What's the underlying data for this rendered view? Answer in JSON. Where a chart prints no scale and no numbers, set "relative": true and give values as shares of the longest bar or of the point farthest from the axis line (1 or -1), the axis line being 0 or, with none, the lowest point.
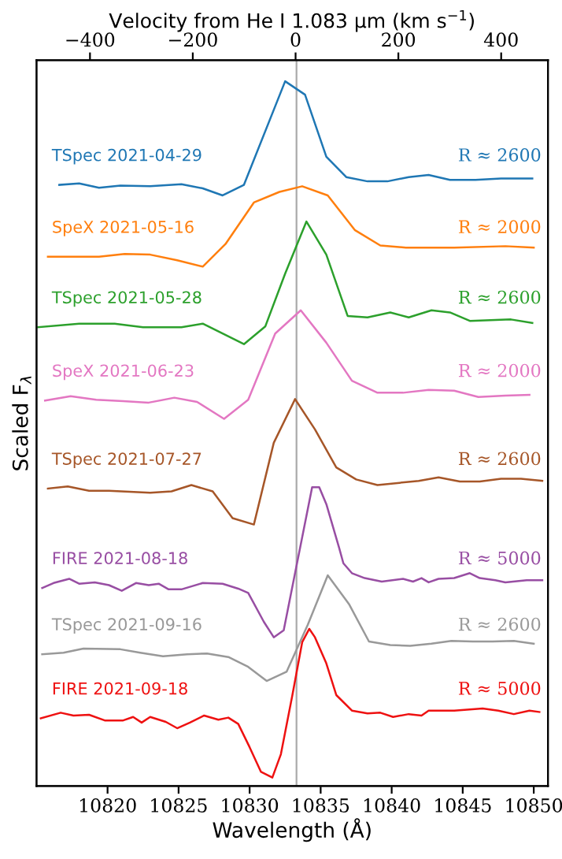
{
  "chart_data": {
    "type": "line",
    "relative": true,
    "xlabel": "Wavelength (Å)",
    "ylabel": "Scaled F$_{λ}$",
    "x2label": "Velocity from He I 1.083 μm (km s$^{−1}$)",
    "xlim": [
      10815,
      10851
    ],
    "xticks": [
      10820,
      10825,
      10830,
      10835,
      10840,
      10845,
      10850
    ],
    "x2lim": [
      -504,
      491
    ],
    "x2ticks": [
      {
        "value": -400,
        "label": "−400"
      },
      {
        "value": -200,
        "label": "−200"
      },
      0,
      200,
      400
    ],
    "grid": false,
    "legend": false,
    "marker": "none",
    "line_style": "solid",
    "ref_lines": [
      {
        "axis": "x",
        "value": 10833.3,
        "color": "#aaaaaa"
      }
    ],
    "series": [
      {
        "name": "TSpec 2021-04-29",
        "color": "#1f77b4",
        "x": [
          10816.6,
          10818.0,
          10819.4,
          10820.9,
          10823.0,
          10825.2,
          10826.7,
          10828.1,
          10829.6,
          10832.5,
          10833.9,
          10835.4,
          10836.8,
          10838.3,
          10839.7,
          10841.2,
          10842.6,
          10844.1,
          10845.9,
          10847.7,
          10849.9
        ],
        "values": [
          0.853,
          0.855,
          0.849,
          0.852,
          0.851,
          0.854,
          0.848,
          0.838,
          0.853,
          1,
          0.981,
          0.893,
          0.864,
          0.858,
          0.858,
          0.864,
          0.867,
          0.86,
          0.86,
          0.862,
          0.862
        ]
      },
      {
        "name": "SpeX 2021-05-16",
        "color": "#ff7f0e",
        "x": [
          10815.8,
          10819.4,
          10821.2,
          10823.0,
          10824.9,
          10826.7,
          10828.3,
          10830.3,
          10832.1,
          10833.7,
          10835.5,
          10837.4,
          10839.2,
          10841.0,
          10844.4,
          10848.0,
          10850.0
        ],
        "values": [
          0.751,
          0.751,
          0.755,
          0.754,
          0.746,
          0.737,
          0.769,
          0.828,
          0.843,
          0.851,
          0.838,
          0.789,
          0.767,
          0.764,
          0.764,
          0.766,
          0.764
        ]
      },
      {
        "name": "TSpec 2021-05-28",
        "color": "#2ca02c",
        "x": [
          10815.1,
          10818.0,
          10820.5,
          10822.5,
          10825.2,
          10826.7,
          10829.6,
          10831.1,
          10832.5,
          10834.0,
          10835.4,
          10836.9,
          10838.3,
          10839.9,
          10841.2,
          10842.8,
          10844.1,
          10845.5,
          10848.4,
          10849.9
        ],
        "values": [
          0.651,
          0.656,
          0.656,
          0.651,
          0.651,
          0.656,
          0.627,
          0.652,
          0.727,
          0.801,
          0.754,
          0.667,
          0.665,
          0.672,
          0.665,
          0.675,
          0.672,
          0.66,
          0.662,
          0.657
        ]
      },
      {
        "name": "SpeX 2021-06-23",
        "color": "#e377c2",
        "x": [
          10815.6,
          10817.4,
          10819.2,
          10821.1,
          10822.9,
          10824.7,
          10826.3,
          10828.2,
          10829.9,
          10831.8,
          10833.6,
          10835.4,
          10837.2,
          10839.0,
          10840.8,
          10842.6,
          10844.4,
          10846.1,
          10848.0,
          10849.7
        ],
        "values": [
          0.547,
          0.553,
          0.548,
          0.546,
          0.544,
          0.551,
          0.545,
          0.521,
          0.548,
          0.642,
          0.675,
          0.629,
          0.575,
          0.558,
          0.558,
          0.562,
          0.561,
          0.552,
          0.554,
          0.555
        ]
      },
      {
        "name": "TSpec 2021-07-27",
        "color": "#a65628",
        "x": [
          10815.8,
          10817.2,
          10818.7,
          10820.1,
          10823.0,
          10824.5,
          10825.9,
          10827.4,
          10828.8,
          10830.3,
          10831.7,
          10833.2,
          10834.6,
          10836.1,
          10837.5,
          10839.0,
          10841.9,
          10843.3,
          10844.8,
          10846.2,
          10847.7,
          10849.1,
          10850.6
        ],
        "values": [
          0.422,
          0.425,
          0.419,
          0.419,
          0.416,
          0.418,
          0.427,
          0.418,
          0.38,
          0.371,
          0.487,
          0.549,
          0.506,
          0.452,
          0.435,
          0.427,
          0.433,
          0.438,
          0.432,
          0.432,
          0.436,
          0.436,
          0.433
        ]
      },
      {
        "name": "FIRE 2021-08-18",
        "color": "#984ea3",
        "x": [
          10815.4,
          10816.2,
          10817.3,
          10818.0,
          10819.1,
          10820.1,
          10821.0,
          10822.0,
          10822.9,
          10823.6,
          10824.3,
          10825.2,
          10826.7,
          10828.1,
          10829.2,
          10829.9,
          10831.0,
          10831.7,
          10832.4,
          10834.4,
          10834.9,
          10835.4,
          10836.3,
          10836.6,
          10837.2,
          10838.1,
          10839.3,
          10840.8,
          10841.5,
          10842.1,
          10842.6,
          10843.3,
          10844.4,
          10845.5,
          10846.2,
          10847.3,
          10848.0,
          10849.5,
          10850.6
        ],
        "values": [
          0.281,
          0.288,
          0.294,
          0.287,
          0.289,
          0.285,
          0.277,
          0.288,
          0.285,
          0.287,
          0.279,
          0.279,
          0.288,
          0.287,
          0.28,
          0.274,
          0.233,
          0.211,
          0.221,
          0.424,
          0.424,
          0.4,
          0.338,
          0.316,
          0.302,
          0.295,
          0.29,
          0.294,
          0.29,
          0.295,
          0.289,
          0.294,
          0.295,
          0.302,
          0.295,
          0.292,
          0.289,
          0.292,
          0.292
        ]
      },
      {
        "name": "TSpec 2021-09-16",
        "color": "#999999",
        "x": [
          10815.4,
          10816.9,
          10818.3,
          10820.9,
          10822.3,
          10823.9,
          10825.6,
          10827.0,
          10828.5,
          10829.9,
          10831.2,
          10832.6,
          10834.1,
          10835.5,
          10837.0,
          10838.4,
          10839.9,
          10841.3,
          10842.8,
          10844.2,
          10845.7,
          10847.1,
          10848.6,
          10850.0
        ],
        "values": [
          0.187,
          0.189,
          0.195,
          0.194,
          0.189,
          0.184,
          0.187,
          0.188,
          0.183,
          0.169,
          0.149,
          0.162,
          0.229,
          0.299,
          0.258,
          0.205,
          0.2,
          0.199,
          0.202,
          0.206,
          0.205,
          0.205,
          0.206,
          0.202
        ]
      },
      {
        "name": "FIRE 2021-09-18",
        "color": "#ee1111",
        "x": [
          10815.3,
          10816.7,
          10817.6,
          10818.7,
          10819.8,
          10821.1,
          10821.8,
          10822.4,
          10823.0,
          10824.1,
          10824.9,
          10825.8,
          10826.8,
          10827.8,
          10828.5,
          10829.2,
          10830.0,
          10830.8,
          10831.6,
          10832.2,
          10833.0,
          10833.7,
          10834.2,
          10834.6,
          10835.4,
          10836.1,
          10837.2,
          10838.3,
          10839.2,
          10840.1,
          10841.2,
          10842.1,
          10842.6,
          10844.4,
          10846.4,
          10847.5,
          10848.6,
          10849.7,
          10850.4
        ],
        "values": [
          0.096,
          0.104,
          0.1,
          0.101,
          0.093,
          0.093,
          0.098,
          0.09,
          0.098,
          0.091,
          0.082,
          0.09,
          0.1,
          0.094,
          0.097,
          0.088,
          0.055,
          0.02,
          0.012,
          0.045,
          0.128,
          0.204,
          0.223,
          0.211,
          0.174,
          0.129,
          0.107,
          0.103,
          0.104,
          0.098,
          0.102,
          0.1,
          0.107,
          0.107,
          0.11,
          0.107,
          0.102,
          0.107,
          0.105
        ]
      }
    ],
    "annotations": [
      "R ≈ 2600",
      "R ≈ 2000",
      "R ≈ 2600",
      "R ≈ 2000",
      "R ≈ 2600",
      "R ≈ 5000",
      "R ≈ 2600",
      "R ≈ 5000"
    ]
  }
}
